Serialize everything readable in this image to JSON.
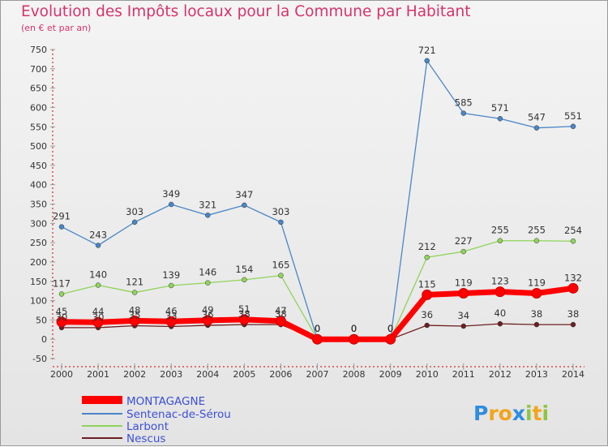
{
  "chart_data": {
    "type": "line",
    "title": "Evolution des Impôts locaux pour la Commune par Habitant",
    "subtitle": "(en € et par an)",
    "categories": [
      "2000",
      "2001",
      "2002",
      "2003",
      "2004",
      "2005",
      "2006",
      "2007",
      "2008",
      "2009",
      "2010",
      "2011",
      "2012",
      "2013",
      "2014"
    ],
    "ylim": [
      -50,
      750
    ],
    "yticks": [
      -50,
      0,
      50,
      100,
      150,
      200,
      250,
      300,
      350,
      400,
      450,
      500,
      550,
      600,
      650,
      700,
      750
    ],
    "grid": false,
    "legend_position": "bottom-left",
    "series": [
      {
        "name": "MONTAGAGNE",
        "color": "#ff0000",
        "values": [
          45,
          44,
          48,
          46,
          49,
          51,
          47,
          0,
          0,
          0,
          115,
          119,
          123,
          119,
          132
        ]
      },
      {
        "name": "Sentenac-de-Sérou",
        "color": "#4a86c6",
        "values": [
          291,
          243,
          303,
          349,
          321,
          347,
          303,
          0,
          0,
          0,
          721,
          585,
          571,
          547,
          551
        ]
      },
      {
        "name": "Larbont",
        "color": "#8fd45a",
        "values": [
          117,
          140,
          121,
          139,
          146,
          154,
          165,
          0,
          0,
          0,
          212,
          227,
          255,
          255,
          254
        ]
      },
      {
        "name": "Nescus",
        "color": "#6b1f22",
        "values": [
          30,
          30,
          35,
          33,
          36,
          38,
          38,
          0,
          0,
          0,
          36,
          34,
          40,
          38,
          38
        ]
      }
    ],
    "value_labels": {
      "MONTAGAGNE": [
        "45",
        "44",
        "48",
        "46",
        "49",
        "51",
        "47",
        "0",
        "0",
        "0",
        "115",
        "119",
        "123",
        "119",
        "132"
      ],
      "Sentenac-de-Sérou": [
        "291",
        "243",
        "303",
        "349",
        "321",
        "347",
        "303",
        "0",
        "0",
        "0",
        "721",
        "585",
        "571",
        "547",
        "551"
      ],
      "Larbont": [
        "117",
        "140",
        "121",
        "139",
        "146",
        "154",
        "165",
        "0",
        "0",
        "0",
        "212",
        "227",
        "255",
        "255",
        "254"
      ],
      "Nescus": [
        "30",
        "30",
        "35",
        "33",
        "36",
        "38",
        "38",
        "0",
        "0",
        "0",
        "36",
        "34",
        "40",
        "38",
        "38"
      ]
    }
  },
  "logo": {
    "letters": [
      "P",
      "r",
      "o",
      "x",
      "i",
      "t",
      "i"
    ],
    "colors": [
      "#2e8de0",
      "#f2a51b",
      "#f2a51b",
      "#2e8de0",
      "#8dc63f",
      "#f2a51b",
      "#8dc63f"
    ]
  }
}
